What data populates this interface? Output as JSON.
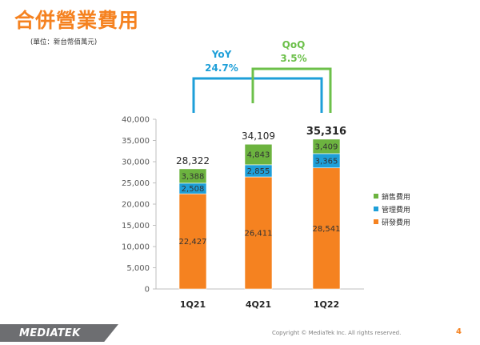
{
  "page": {
    "title": "合併營業費用",
    "unit_note": "(單位：新台幣佰萬元)",
    "copyright": "Copyright © MediaTek Inc. All rights reserved.",
    "page_number": "4",
    "logo_text": "MEDIATEK"
  },
  "comparisons": {
    "yoy": {
      "label": "YoY",
      "value": "24.7%",
      "color": "#1e9fd8"
    },
    "qoq": {
      "label": "QoQ",
      "value": "3.5%",
      "color": "#6cc04a"
    }
  },
  "chart_data": {
    "type": "bar",
    "stacked": true,
    "categories": [
      "1Q21",
      "4Q21",
      "1Q22"
    ],
    "series": [
      {
        "name": "研發費用",
        "color": "#f58220",
        "values": [
          22427,
          26411,
          28541
        ],
        "labels": [
          "22,427",
          "26,411",
          "28,541"
        ]
      },
      {
        "name": "管理費用",
        "color": "#1e9fd8",
        "values": [
          2508,
          2855,
          3365
        ],
        "labels": [
          "2,508",
          "2,855",
          "3,365"
        ]
      },
      {
        "name": "銷售費用",
        "color": "#6cb33f",
        "values": [
          3388,
          4843,
          3409
        ],
        "labels": [
          "3,388",
          "4,843",
          "3,409"
        ]
      }
    ],
    "totals": [
      28322,
      34109,
      35316
    ],
    "total_labels": [
      "28,322",
      "34,109",
      "35,316"
    ],
    "ylim": [
      0,
      40000
    ],
    "yticks": [
      0,
      5000,
      10000,
      15000,
      20000,
      25000,
      30000,
      35000,
      40000
    ],
    "ytick_labels": [
      "0",
      "5,000",
      "10,000",
      "15,000",
      "20,000",
      "25,000",
      "30,000",
      "35,000",
      "40,000"
    ],
    "legend": [
      "銷售費用",
      "管理費用",
      "研發費用"
    ],
    "legend_colors": [
      "#6cb33f",
      "#1e9fd8",
      "#f58220"
    ],
    "legend_position": "right",
    "grid": false
  }
}
